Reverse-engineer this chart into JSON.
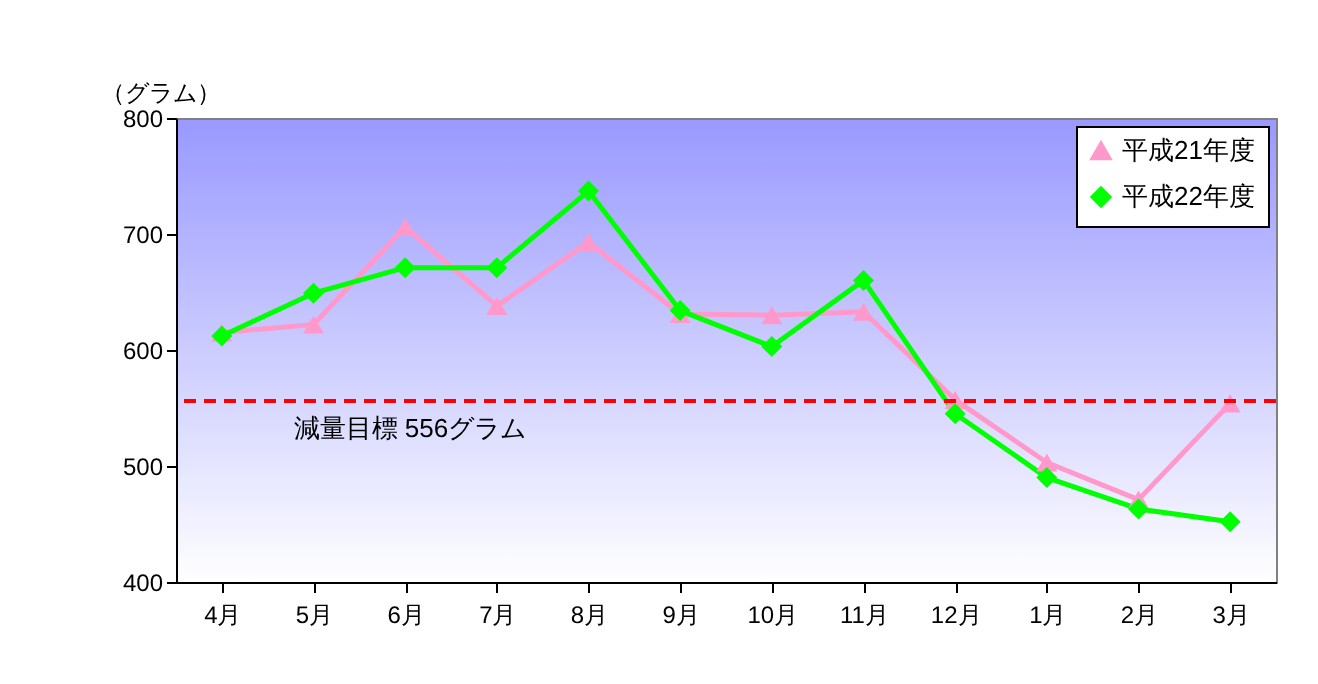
{
  "chart_data": {
    "type": "line",
    "ylabel": "（グラム）",
    "categories": [
      "4月",
      "5月",
      "6月",
      "7月",
      "8月",
      "9月",
      "10月",
      "11月",
      "12月",
      "1月",
      "2月",
      "3月"
    ],
    "series": [
      {
        "name": "平成21年度",
        "color": "#ff99cc",
        "marker": "triangle",
        "values": [
          615,
          622,
          706,
          638,
          693,
          631,
          630,
          633,
          557,
          503,
          471,
          554
        ]
      },
      {
        "name": "平成22年度",
        "color": "#00ff00",
        "marker": "diamond",
        "values": [
          612,
          649,
          671,
          671,
          737,
          634,
          603,
          660,
          545,
          490,
          463,
          452
        ]
      }
    ],
    "ylim": [
      400,
      800
    ],
    "yticks": [
      400,
      500,
      600,
      700,
      800
    ],
    "ref_lines": [
      {
        "axis": "y",
        "value": 556,
        "label": "減量目標  556グラム",
        "color": "#ff0000",
        "line_style": "dashed"
      }
    ],
    "legend": "top right",
    "grid": false
  }
}
